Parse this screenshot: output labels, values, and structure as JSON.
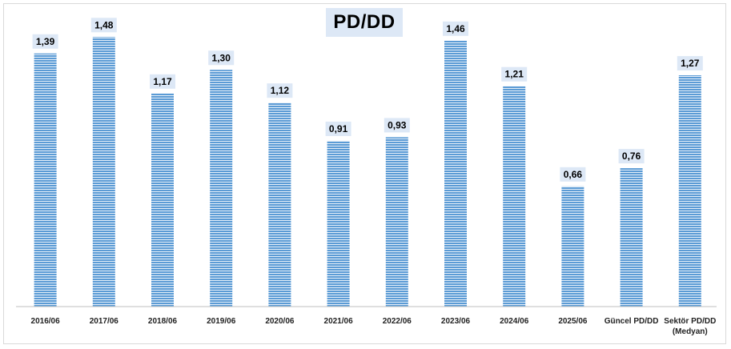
{
  "chart_data": {
    "type": "bar",
    "title": "PD/DD",
    "categories": [
      [
        "2016/06"
      ],
      [
        "2017/06"
      ],
      [
        "2018/06"
      ],
      [
        "2019/06"
      ],
      [
        "2020/06"
      ],
      [
        "2021/06"
      ],
      [
        "2022/06"
      ],
      [
        "2023/06"
      ],
      [
        "2024/06"
      ],
      [
        "2025/06"
      ],
      [
        "Güncel PD/DD"
      ],
      [
        "Sektör PD/DD",
        "(Medyan)"
      ]
    ],
    "values": [
      1.39,
      1.48,
      1.17,
      1.3,
      1.12,
      0.91,
      0.93,
      1.46,
      1.21,
      0.66,
      0.76,
      1.27
    ],
    "value_labels": [
      "1,39",
      "1,48",
      "1,17",
      "1,30",
      "1,12",
      "0,91",
      "0,93",
      "1,46",
      "1,21",
      "0,66",
      "0,76",
      "1,27"
    ],
    "ylim": [
      0,
      1.6
    ],
    "grid": false,
    "legend": "none",
    "bar_color": "#5b9bd5",
    "bar_stripe_color": "#ffffff",
    "label_bg_color": "#dde8f6",
    "title_bg_color": "#dde8f6"
  }
}
